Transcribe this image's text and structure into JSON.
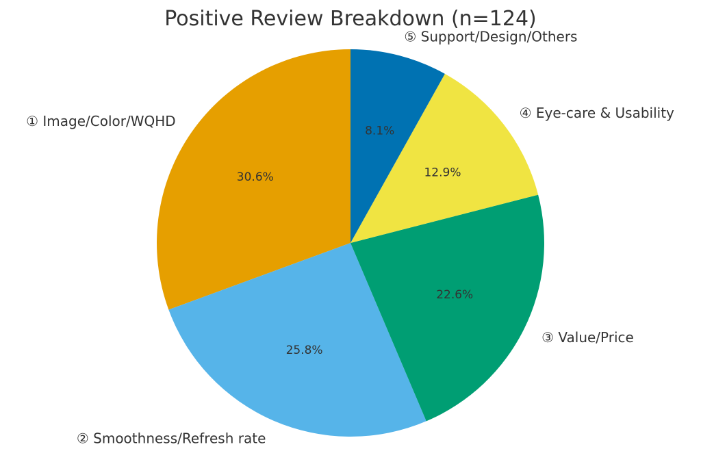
{
  "chart_data": {
    "type": "pie",
    "title": "Positive Review Breakdown (n=124)",
    "start": "top",
    "direction": "counterclockwise",
    "slices": [
      {
        "label": "① Image/Color/WQHD",
        "value": 30.6,
        "value_label": "30.6%",
        "color": "#E69F00"
      },
      {
        "label": "② Smoothness/Refresh rate",
        "value": 25.8,
        "value_label": "25.8%",
        "color": "#56B4E9"
      },
      {
        "label": "③ Value/Price",
        "value": 22.6,
        "value_label": "22.6%",
        "color": "#009E73"
      },
      {
        "label": "④ Eye-care & Usability",
        "value": 12.9,
        "value_label": "12.9%",
        "color": "#F0E442"
      },
      {
        "label": "⑤ Support/Design/Others",
        "value": 8.1,
        "value_label": "8.1%",
        "color": "#0072B2"
      }
    ]
  }
}
